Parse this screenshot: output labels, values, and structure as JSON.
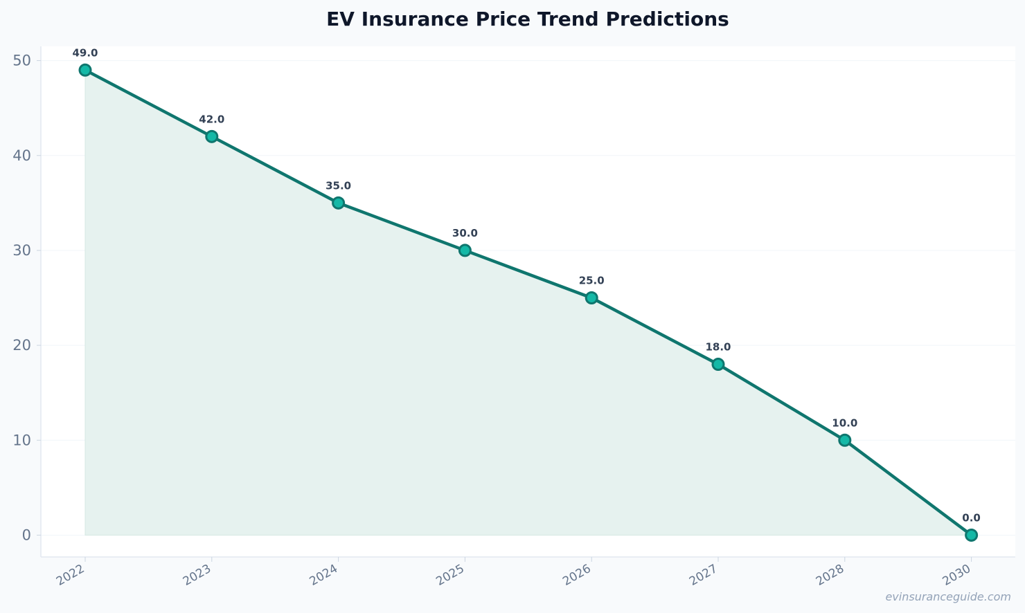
{
  "chart_data": {
    "type": "line",
    "title": "EV Insurance Price Trend Predictions",
    "xlabel": "",
    "ylabel": "",
    "categories": [
      "2022",
      "2023",
      "2024",
      "2025",
      "2026",
      "2027",
      "2028",
      "2030"
    ],
    "values": [
      49.0,
      42.0,
      35.0,
      30.0,
      25.0,
      18.0,
      10.0,
      0.0
    ],
    "data_labels": [
      "49.0",
      "42.0",
      "35.0",
      "30.0",
      "25.0",
      "18.0",
      "10.0",
      "0.0"
    ],
    "ylim": [
      -2.3,
      51.5
    ],
    "yticks": [
      0,
      10,
      20,
      30,
      40,
      50
    ],
    "grid": true,
    "area_fill": true,
    "colors": {
      "line": "#0f766e",
      "marker_fill": "#14b8a6",
      "area": "#e6f2ef",
      "plot_background": "#ffffff",
      "page_background": "#f8fafc"
    }
  },
  "watermark": "evinsuranceguide.com"
}
